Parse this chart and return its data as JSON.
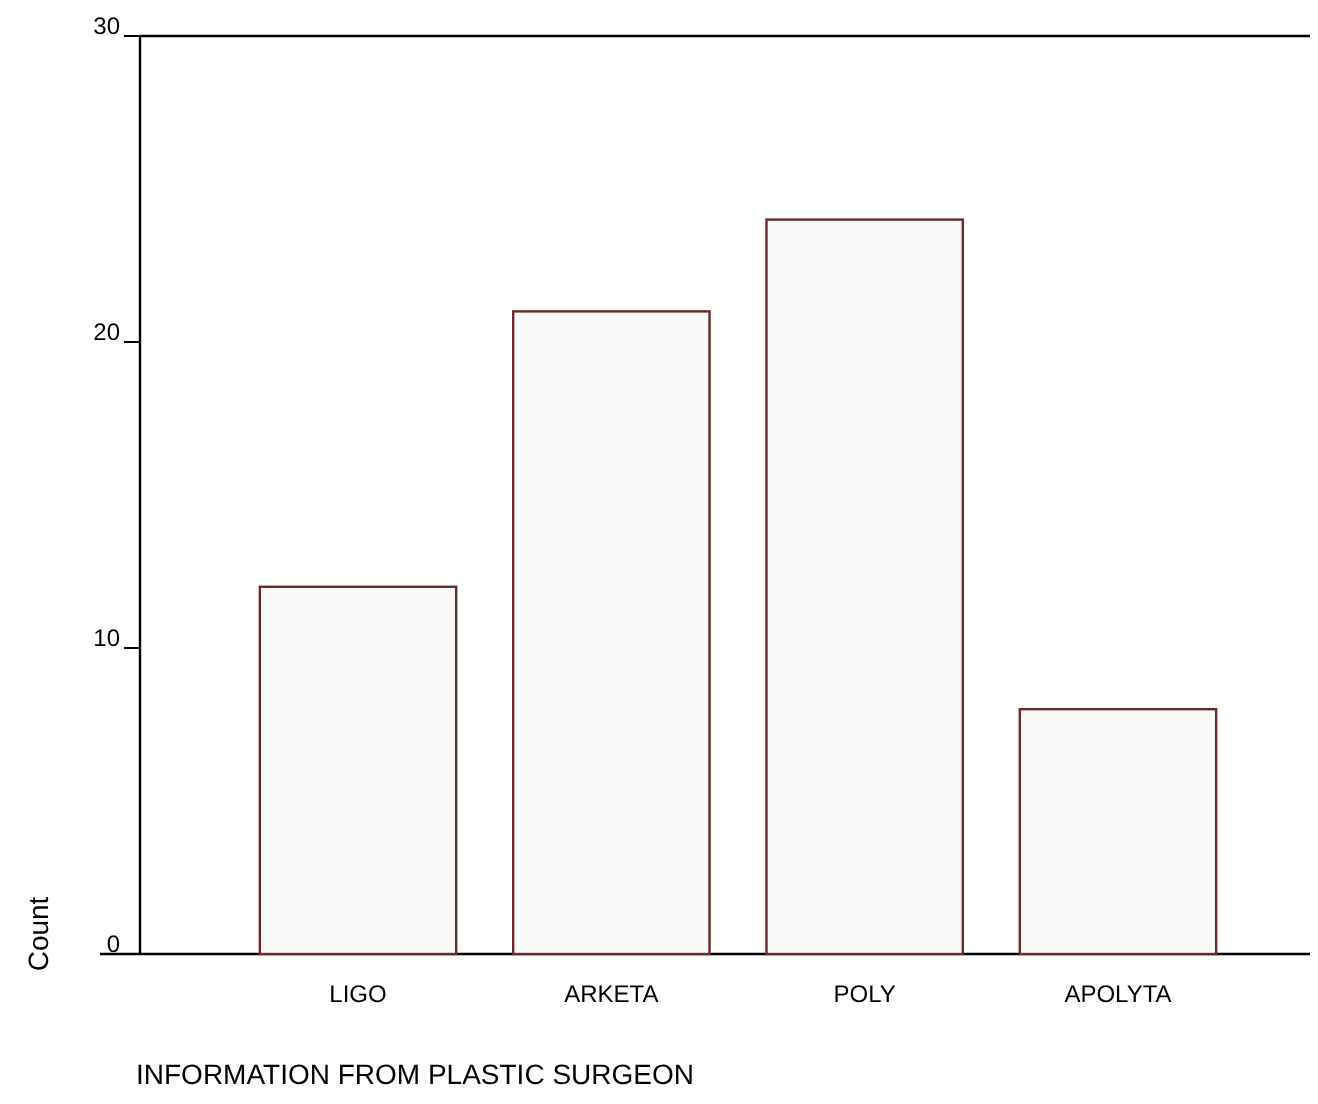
{
  "chart_data": {
    "type": "bar",
    "xlabel": "INFORMATION FROM PLASTIC SURGEON",
    "ylabel": "Count",
    "categories": [
      "LIGO",
      "ARKETA",
      "POLY",
      "APOLYTA"
    ],
    "values": [
      12,
      21,
      24,
      8
    ],
    "color": "#fafafa",
    "ylim": [
      0,
      30
    ],
    "yticks": [
      0,
      10,
      20,
      30
    ],
    "grid": false
  }
}
